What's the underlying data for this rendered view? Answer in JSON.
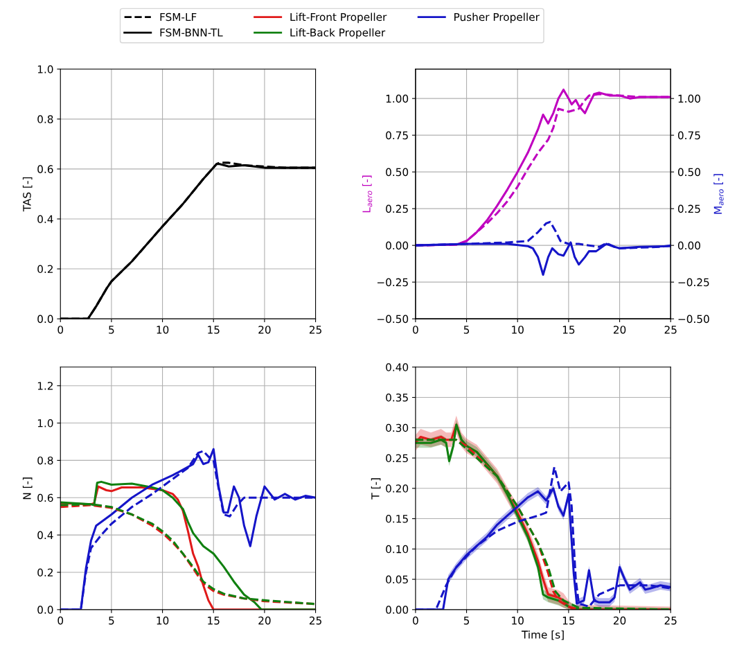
{
  "chart_data": [
    {
      "type": "line",
      "ylabel": "TAS [-]",
      "xlim": [
        0,
        25
      ],
      "xticks": [
        0,
        5,
        10,
        15,
        20,
        25
      ],
      "ylim": [
        0,
        1.0
      ],
      "yticks": [
        {
          "value": 0,
          "label": "0.0"
        },
        0.2,
        0.4,
        0.6,
        0.8,
        {
          "value": 1,
          "label": "1.0"
        }
      ],
      "grid": true,
      "legend": "top",
      "series": [
        {
          "name": "FSM-LF",
          "color": "#000000",
          "line_style": "dashed",
          "x": [
            0,
            2.7,
            3.5,
            4.5,
            5,
            7,
            10,
            12,
            14,
            15.3,
            15.6,
            16.5,
            18,
            20,
            22,
            25
          ],
          "values": [
            0,
            0,
            0.05,
            0.12,
            0.15,
            0.23,
            0.37,
            0.46,
            0.56,
            0.62,
            0.625,
            0.625,
            0.615,
            0.61,
            0.605,
            0.605
          ]
        },
        {
          "name": "FSM-BNN-TL",
          "color": "#000000",
          "line_style": "solid",
          "x": [
            0,
            2.7,
            3.5,
            4.5,
            5,
            7,
            10,
            12,
            14,
            15.3,
            15.6,
            16.5,
            18,
            20,
            22,
            25
          ],
          "values": [
            0,
            0,
            0.05,
            0.12,
            0.15,
            0.23,
            0.37,
            0.46,
            0.56,
            0.62,
            0.62,
            0.61,
            0.615,
            0.605,
            0.605,
            0.605
          ]
        }
      ]
    },
    {
      "type": "line",
      "ylabel": "L$_{aero}$ [-]",
      "y2label": "M$_{aero}$ [-]",
      "xlim": [
        0,
        25
      ],
      "xticks": [
        0,
        5,
        10,
        15,
        20,
        25
      ],
      "ylim": [
        -0.5,
        1.2
      ],
      "yticks": [
        {
          "value": -0.5,
          "label": "−0.50"
        },
        {
          "value": -0.25,
          "label": "−0.25"
        },
        {
          "value": 0,
          "label": "0.00"
        },
        0.25,
        {
          "value": 0.5,
          "label": "0.50"
        },
        0.75,
        {
          "value": 1,
          "label": "1.00"
        }
      ],
      "y2lim": [
        -0.5,
        1.2
      ],
      "y2ticks": [
        {
          "value": -0.5,
          "label": "−0.50"
        },
        {
          "value": -0.25,
          "label": "−0.25"
        },
        {
          "value": 0,
          "label": "0.00"
        },
        0.25,
        {
          "value": 0.5,
          "label": "0.50"
        },
        0.75,
        {
          "value": 1,
          "label": "1.00"
        }
      ],
      "grid": true,
      "series": [
        {
          "color": "#bf00bf",
          "line_style": "solid",
          "x": [
            0,
            4,
            5,
            6,
            7,
            8,
            9,
            10,
            11,
            12,
            12.5,
            13,
            13.5,
            14,
            14.5,
            15,
            15.3,
            15.7,
            16,
            16.6,
            17,
            17.5,
            18,
            19,
            20,
            21,
            22,
            25
          ],
          "values": [
            0,
            0.005,
            0.03,
            0.09,
            0.17,
            0.27,
            0.38,
            0.5,
            0.63,
            0.79,
            0.89,
            0.83,
            0.9,
            1.0,
            1.06,
            1.0,
            0.96,
            0.99,
            0.95,
            0.9,
            0.96,
            1.03,
            1.04,
            1.02,
            1.02,
            1.0,
            1.01,
            1.01
          ]
        },
        {
          "color": "#bf00bf",
          "line_style": "dashed",
          "x": [
            0,
            4,
            5,
            7,
            8,
            9,
            10,
            11,
            12,
            13,
            13.5,
            14,
            15,
            16,
            16.5,
            17,
            18,
            20,
            22,
            25
          ],
          "values": [
            0,
            0.005,
            0.03,
            0.15,
            0.22,
            0.3,
            0.4,
            0.52,
            0.63,
            0.72,
            0.8,
            0.93,
            0.91,
            0.93,
            0.98,
            1.02,
            1.03,
            1.02,
            1.01,
            1.01
          ]
        },
        {
          "color": "#1515c8",
          "line_style": "solid",
          "axis": "y2",
          "x": [
            0,
            5,
            9,
            11,
            11.5,
            12,
            12.5,
            13,
            13.4,
            14,
            14.5,
            15.2,
            15.6,
            16,
            16.6,
            17,
            17.7,
            18.7,
            19.5,
            20,
            22,
            25
          ],
          "values": [
            0,
            0.01,
            0.01,
            -0.005,
            -0.02,
            -0.08,
            -0.2,
            -0.08,
            -0.02,
            -0.06,
            -0.07,
            0.02,
            -0.08,
            -0.13,
            -0.08,
            -0.04,
            -0.04,
            0.01,
            -0.01,
            -0.02,
            -0.01,
            -0.005
          ]
        },
        {
          "color": "#1515c8",
          "line_style": "dashed",
          "axis": "y2",
          "x": [
            0,
            5,
            9,
            11,
            12,
            12.8,
            13.2,
            13.7,
            14.2,
            15,
            16,
            17,
            18,
            18.7,
            19.5,
            20,
            22,
            24,
            25
          ],
          "values": [
            0,
            0.01,
            0.02,
            0.03,
            0.09,
            0.15,
            0.16,
            0.1,
            0.03,
            0.01,
            0.01,
            0.0,
            -0.01,
            0.015,
            -0.01,
            -0.02,
            -0.015,
            -0.01,
            0
          ]
        }
      ]
    },
    {
      "type": "line",
      "ylabel": "N [-]",
      "xlim": [
        0,
        25
      ],
      "xticks": [
        0,
        5,
        10,
        15,
        20,
        25
      ],
      "ylim": [
        0,
        1.3
      ],
      "yticks": [
        {
          "value": 0,
          "label": "0.0"
        },
        0.2,
        0.4,
        0.6,
        0.8,
        {
          "value": 1,
          "label": "1.0"
        },
        1.2
      ],
      "grid": true,
      "legend": "top",
      "series": [
        {
          "name": "Lift-Front Propeller",
          "color": "#e01a1a",
          "line_style": "solid",
          "x": [
            0,
            3,
            3.3,
            3.7,
            4.5,
            5,
            6,
            8,
            10,
            11,
            11.5,
            12,
            12.5,
            13,
            13.5,
            14,
            14.5,
            15,
            25
          ],
          "values": [
            0.57,
            0.565,
            0.57,
            0.66,
            0.64,
            0.635,
            0.655,
            0.655,
            0.64,
            0.62,
            0.59,
            0.53,
            0.42,
            0.3,
            0.23,
            0.13,
            0.05,
            0,
            0
          ]
        },
        {
          "name": "Lift-Back Propeller",
          "color": "#108010",
          "line_style": "solid",
          "x": [
            0,
            3,
            3.3,
            3.6,
            4,
            5,
            7,
            9,
            10,
            11,
            12,
            12.5,
            13,
            14,
            15,
            16,
            17,
            18,
            19,
            19.7,
            25
          ],
          "values": [
            0.575,
            0.565,
            0.56,
            0.68,
            0.685,
            0.67,
            0.675,
            0.655,
            0.64,
            0.6,
            0.54,
            0.47,
            0.41,
            0.34,
            0.3,
            0.23,
            0.15,
            0.08,
            0.04,
            0,
            0
          ]
        },
        {
          "name": "Pusher Propeller",
          "color": "#1515c8",
          "line_style": "solid",
          "x": [
            0,
            2,
            2.5,
            3,
            3.5,
            5,
            7,
            9,
            11,
            13,
            13.5,
            14,
            14.5,
            15,
            15.5,
            16,
            16.4,
            17,
            17.5,
            18,
            18.6,
            19.2,
            20,
            21,
            22,
            23,
            24,
            25
          ],
          "values": [
            0,
            0,
            0.22,
            0.37,
            0.45,
            0.51,
            0.6,
            0.67,
            0.72,
            0.78,
            0.83,
            0.78,
            0.79,
            0.86,
            0.66,
            0.52,
            0.52,
            0.66,
            0.6,
            0.45,
            0.34,
            0.5,
            0.66,
            0.59,
            0.62,
            0.59,
            0.61,
            0.6
          ]
        },
        {
          "color": "#e01a1a",
          "line_style": "dashed",
          "x": [
            0,
            3,
            5,
            7,
            9,
            10,
            11,
            12,
            13,
            14,
            15,
            16,
            18,
            20,
            25
          ],
          "values": [
            0.55,
            0.56,
            0.545,
            0.51,
            0.45,
            0.41,
            0.36,
            0.3,
            0.22,
            0.14,
            0.1,
            0.08,
            0.06,
            0.045,
            0.03
          ]
        },
        {
          "color": "#108010",
          "line_style": "dashed",
          "x": [
            0,
            3,
            5,
            7,
            9,
            10,
            11,
            12,
            13,
            14,
            15,
            16,
            18,
            20,
            25
          ],
          "values": [
            0.56,
            0.565,
            0.55,
            0.51,
            0.46,
            0.42,
            0.37,
            0.3,
            0.23,
            0.15,
            0.11,
            0.085,
            0.06,
            0.05,
            0.03
          ]
        },
        {
          "color": "#1515c8",
          "line_style": "dashed",
          "x": [
            0,
            2,
            2.5,
            3,
            4,
            5,
            7,
            9,
            11,
            12.5,
            13.5,
            14,
            14.5,
            15,
            15.5,
            16,
            16.6,
            17.3,
            18,
            20,
            25
          ],
          "values": [
            0,
            0,
            0.2,
            0.33,
            0.4,
            0.46,
            0.55,
            0.62,
            0.7,
            0.76,
            0.84,
            0.85,
            0.82,
            0.8,
            0.65,
            0.51,
            0.5,
            0.56,
            0.6,
            0.6,
            0.6
          ]
        }
      ]
    },
    {
      "type": "line",
      "ylabel": "T [-]",
      "xlabel": "Time [s]",
      "xlim": [
        0,
        25
      ],
      "xticks": [
        0,
        5,
        10,
        15,
        20,
        25
      ],
      "ylim": [
        0,
        0.4
      ],
      "yticks": [
        {
          "value": 0,
          "label": "0.00"
        },
        0.05,
        {
          "value": 0.1,
          "label": "0.10"
        },
        0.15,
        {
          "value": 0.2,
          "label": "0.20"
        },
        0.25,
        {
          "value": 0.3,
          "label": "0.30"
        },
        0.35,
        {
          "value": 0.4,
          "label": "0.40"
        }
      ],
      "grid": true,
      "series": [
        {
          "color": "#e01a1a",
          "line_style": "solid",
          "x": [
            0,
            0.5,
            1.5,
            2.5,
            3,
            3.5,
            4,
            4.5,
            5,
            6,
            7,
            8,
            9,
            10,
            11,
            12,
            12.5,
            13,
            14,
            14.5,
            15,
            15.5,
            25
          ],
          "values": [
            0.275,
            0.285,
            0.28,
            0.285,
            0.28,
            0.28,
            0.305,
            0.28,
            0.27,
            0.26,
            0.24,
            0.22,
            0.19,
            0.16,
            0.125,
            0.08,
            0.05,
            0.025,
            0.02,
            0.015,
            0.005,
            0,
            0
          ],
          "lower": [
            0.262,
            0.272,
            0.268,
            0.272,
            0.268,
            0.268,
            0.29,
            0.268,
            0.258,
            0.248,
            0.228,
            0.208,
            0.178,
            0.148,
            0.113,
            0.068,
            0.038,
            0.013,
            0.008,
            0.003,
            0,
            0,
            0
          ],
          "upper": [
            0.288,
            0.298,
            0.292,
            0.298,
            0.292,
            0.292,
            0.32,
            0.292,
            0.282,
            0.272,
            0.252,
            0.232,
            0.202,
            0.172,
            0.137,
            0.092,
            0.062,
            0.037,
            0.032,
            0.027,
            0.015,
            0.008,
            0.005
          ]
        },
        {
          "color": "#108010",
          "line_style": "solid",
          "x": [
            0,
            1.5,
            2.5,
            3,
            3.3,
            3.7,
            4,
            4.5,
            5,
            6,
            7,
            8,
            9,
            10,
            11,
            12,
            12.5,
            13,
            14,
            15,
            16,
            25
          ],
          "values": [
            0.275,
            0.275,
            0.28,
            0.275,
            0.245,
            0.27,
            0.305,
            0.28,
            0.27,
            0.26,
            0.24,
            0.22,
            0.19,
            0.155,
            0.12,
            0.07,
            0.025,
            0.02,
            0.015,
            0.005,
            0,
            0
          ],
          "lower": [
            0.267,
            0.267,
            0.272,
            0.267,
            0.237,
            0.262,
            0.297,
            0.272,
            0.262,
            0.252,
            0.232,
            0.212,
            0.182,
            0.147,
            0.112,
            0.062,
            0.017,
            0.012,
            0.007,
            0,
            0,
            0
          ],
          "upper": [
            0.283,
            0.283,
            0.288,
            0.283,
            0.253,
            0.278,
            0.313,
            0.288,
            0.278,
            0.268,
            0.248,
            0.228,
            0.198,
            0.163,
            0.128,
            0.078,
            0.033,
            0.028,
            0.023,
            0.013,
            0.005,
            0.003
          ]
        },
        {
          "color": "#1515c8",
          "line_style": "solid",
          "x": [
            0,
            2.7,
            3.2,
            4,
            5,
            6,
            7,
            8,
            9,
            10,
            11,
            12,
            12.8,
            13.5,
            14,
            14.5,
            15,
            15.5,
            15.8,
            16.5,
            17,
            17.5,
            18,
            19,
            19.5,
            20,
            20.5,
            21,
            22,
            22.5,
            23,
            24,
            25
          ],
          "values": [
            0,
            0,
            0.05,
            0.07,
            0.09,
            0.105,
            0.12,
            0.14,
            0.155,
            0.17,
            0.185,
            0.195,
            0.18,
            0.2,
            0.17,
            0.155,
            0.19,
            0.06,
            0.01,
            0.015,
            0.065,
            0.015,
            0.012,
            0.012,
            0.02,
            0.07,
            0.05,
            0.033,
            0.045,
            0.033,
            0.035,
            0.04,
            0.037
          ],
          "lower": [
            0,
            0,
            0.043,
            0.063,
            0.083,
            0.098,
            0.113,
            0.133,
            0.148,
            0.163,
            0.178,
            0.188,
            0.173,
            0.193,
            0.163,
            0.148,
            0.183,
            0.053,
            0.003,
            0.008,
            0.058,
            0.008,
            0.005,
            0.005,
            0.013,
            0.063,
            0.043,
            0.026,
            0.038,
            0.026,
            0.028,
            0.033,
            0.03
          ],
          "upper": [
            0.002,
            0.002,
            0.057,
            0.077,
            0.097,
            0.112,
            0.127,
            0.147,
            0.162,
            0.177,
            0.192,
            0.202,
            0.187,
            0.207,
            0.177,
            0.162,
            0.197,
            0.067,
            0.017,
            0.022,
            0.072,
            0.022,
            0.019,
            0.019,
            0.027,
            0.077,
            0.057,
            0.04,
            0.052,
            0.04,
            0.042,
            0.047,
            0.044
          ]
        },
        {
          "color": "#e01a1a",
          "line_style": "dashed",
          "x": [
            0,
            4,
            5,
            8,
            10,
            11,
            12,
            13,
            13.5,
            14,
            15,
            16,
            25
          ],
          "values": [
            0.28,
            0.28,
            0.27,
            0.22,
            0.17,
            0.14,
            0.11,
            0.06,
            0.03,
            0.015,
            0.005,
            0,
            0
          ]
        },
        {
          "color": "#108010",
          "line_style": "dashed",
          "x": [
            0,
            4,
            8,
            10,
            11,
            12,
            13,
            13.7,
            14.5,
            16,
            25
          ],
          "values": [
            0.28,
            0.28,
            0.22,
            0.17,
            0.14,
            0.11,
            0.07,
            0.03,
            0.015,
            0.003,
            0
          ]
        },
        {
          "color": "#1515c8",
          "line_style": "dashed",
          "x": [
            0,
            2,
            3,
            4,
            6,
            8,
            10,
            12,
            12.8,
            13.6,
            14.2,
            15,
            15.3,
            15.7,
            16,
            17,
            18,
            20,
            21,
            23,
            25
          ],
          "values": [
            0,
            0,
            0.04,
            0.07,
            0.105,
            0.13,
            0.145,
            0.155,
            0.16,
            0.235,
            0.195,
            0.21,
            0.17,
            0.05,
            0.01,
            0.005,
            0.025,
            0.04,
            0.04,
            0.04,
            0.035
          ]
        }
      ]
    }
  ]
}
